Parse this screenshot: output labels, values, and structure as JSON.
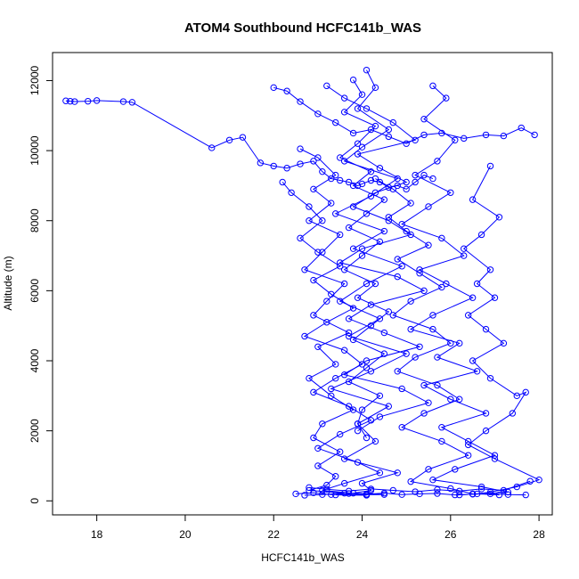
{
  "chart_data": {
    "type": "line",
    "title": "ATOM4 Southbound HCFC141b_WAS",
    "xlabel": "HCFC141b_WAS",
    "ylabel": "Altitude (m)",
    "xlim": [
      17,
      28.3
    ],
    "ylim": [
      -400,
      12800
    ],
    "xticks": [
      18,
      20,
      22,
      24,
      26,
      28
    ],
    "yticks": [
      0,
      2000,
      4000,
      6000,
      8000,
      10000,
      12000
    ],
    "grid": false,
    "legend": "none",
    "marker": "open-circle",
    "color": "#0000ff",
    "series": [
      {
        "x": [
          17.3,
          17.4,
          17.5,
          17.8,
          18.0,
          18.6,
          18.8,
          20.6,
          21.0,
          21.3,
          21.7,
          22.0,
          22.3,
          22.6,
          22.9,
          23.1,
          23.3,
          23.5,
          23.7,
          23.9,
          24.0,
          24.2,
          24.4,
          24.6,
          24.8,
          25.0,
          25.2,
          25.4,
          25.6
        ],
        "y": [
          11420,
          11410,
          11400,
          11410,
          11430,
          11400,
          11380,
          10080,
          10300,
          10380,
          9650,
          9560,
          9500,
          9620,
          9700,
          9400,
          9200,
          9150,
          9100,
          9000,
          9050,
          9150,
          9100,
          8950,
          9000,
          8900,
          9100,
          9300,
          9200
        ]
      },
      {
        "x": [
          24.1,
          24.3,
          23.9,
          24.6,
          24.0,
          23.6,
          24.8,
          24.2,
          23.4,
          24.5,
          23.8,
          24.9,
          24.1,
          23.5,
          24.4,
          23.7,
          25.0,
          24.2,
          23.3,
          24.6,
          23.9,
          24.3,
          23.6,
          24.8,
          24.0,
          24.2,
          23.8,
          24.5,
          23.4,
          24.1
        ],
        "y": [
          12300,
          11800,
          11200,
          10600,
          10100,
          9700,
          9200,
          8700,
          8200,
          7700,
          7200,
          6700,
          6200,
          5700,
          5200,
          4700,
          4200,
          3700,
          3200,
          2700,
          2200,
          1700,
          1200,
          800,
          500,
          300,
          220,
          180,
          170,
          160
        ]
      },
      {
        "x": [
          22.6,
          23.0,
          23.4,
          22.9,
          23.3,
          22.8,
          23.5,
          23.1,
          22.7,
          23.6,
          23.2,
          22.9,
          23.7,
          23.0,
          23.4,
          22.8,
          23.3,
          23.8,
          23.1,
          22.9,
          23.5,
          23.0,
          23.4,
          23.2,
          22.8,
          23.6,
          23.1,
          22.7
        ],
        "y": [
          10050,
          9800,
          9300,
          8900,
          8500,
          8000,
          7600,
          7100,
          6600,
          6200,
          5700,
          5300,
          4800,
          4400,
          3900,
          3500,
          3000,
          2600,
          2200,
          1800,
          1400,
          1000,
          700,
          450,
          300,
          220,
          180,
          160
        ]
      },
      {
        "x": [
          25.6,
          25.9,
          25.4,
          26.1,
          25.7,
          25.2,
          26.0,
          25.5,
          24.9,
          25.8,
          26.3,
          25.3,
          25.9,
          26.5,
          25.6,
          25.1,
          26.2,
          25.7,
          26.6,
          25.4,
          26.0,
          26.8,
          25.8,
          26.4,
          27.0,
          26.1,
          25.6,
          26.7,
          27.3,
          26.2
        ],
        "y": [
          11850,
          11500,
          10900,
          10300,
          9700,
          9300,
          8800,
          8400,
          7900,
          7500,
          7000,
          6600,
          6200,
          5800,
          5300,
          4900,
          4500,
          4100,
          3700,
          3300,
          2900,
          2500,
          2100,
          1700,
          1300,
          900,
          600,
          400,
          250,
          170
        ]
      },
      {
        "x": [
          26.9,
          26.5,
          27.1,
          26.7,
          26.3,
          26.9,
          26.6,
          27.0,
          26.4,
          26.8,
          27.2,
          26.5,
          26.9,
          27.5,
          27.7,
          27.4,
          26.8,
          26.4,
          27.0,
          28.0,
          27.5,
          26.9,
          26.6,
          27.1
        ],
        "y": [
          9560,
          8600,
          8100,
          7600,
          7200,
          6600,
          6200,
          5800,
          5300,
          4900,
          4500,
          4000,
          3500,
          3000,
          3100,
          2500,
          2000,
          1600,
          1200,
          600,
          400,
          250,
          200,
          170
        ]
      },
      {
        "x": [
          22.5,
          22.9,
          23.3,
          23.7,
          24.1,
          24.5,
          24.9,
          25.3,
          25.7,
          26.1,
          26.5,
          26.9,
          27.3,
          27.7
        ],
        "y": [
          200,
          230,
          180,
          210,
          190,
          220,
          180,
          200,
          210,
          170,
          190,
          200,
          180,
          170
        ]
      },
      {
        "x": [
          22.0,
          22.3,
          22.6,
          23.0,
          23.4,
          23.8,
          24.2,
          24.6,
          25.0,
          25.4,
          25.8,
          26.3,
          26.8,
          27.2,
          27.6,
          27.9
        ],
        "y": [
          11800,
          11700,
          11400,
          11050,
          10800,
          10500,
          10600,
          10400,
          10200,
          10450,
          10500,
          10350,
          10450,
          10420,
          10650,
          10450
        ]
      },
      {
        "x": [
          23.2,
          23.6,
          24.1,
          24.7,
          25.2,
          23.9,
          24.4,
          25.0,
          24.3,
          23.8,
          24.6,
          25.1,
          24.0,
          23.5,
          24.8,
          25.4,
          24.2,
          23.7,
          24.5,
          25.3,
          24.1,
          23.6,
          24.9,
          25.5,
          24.4,
          23.9
        ],
        "y": [
          11850,
          11500,
          11200,
          10800,
          10300,
          9900,
          9500,
          9100,
          8800,
          8400,
          8000,
          7600,
          7200,
          6800,
          6400,
          6000,
          5600,
          5200,
          4800,
          4400,
          4000,
          3600,
          3200,
          2800,
          2400,
          2000
        ]
      },
      {
        "x": [
          22.2,
          22.4,
          22.8,
          23.1,
          22.6,
          23.0,
          23.5,
          22.9,
          23.3,
          23.8,
          23.2,
          22.7,
          23.6,
          24.0,
          23.4,
          22.9,
          23.7,
          24.2,
          23.5,
          23.0,
          23.9,
          24.4,
          23.6,
          23.1,
          24.1
        ],
        "y": [
          9100,
          8800,
          8400,
          8000,
          7500,
          7100,
          6700,
          6300,
          5900,
          5500,
          5100,
          4700,
          4300,
          3900,
          3500,
          3100,
          2700,
          2300,
          1900,
          1500,
          1100,
          800,
          500,
          300,
          180
        ]
      },
      {
        "x": [
          24.3,
          24.7,
          25.1,
          24.6,
          25.0,
          25.5,
          24.8,
          25.3,
          25.8,
          25.1,
          24.7,
          25.6,
          26.0,
          25.2,
          24.8,
          25.7,
          26.2,
          25.4,
          24.9,
          25.8,
          26.4,
          25.5,
          25.1,
          26.0,
          26.5
        ],
        "y": [
          9200,
          8900,
          8500,
          8100,
          7700,
          7300,
          6900,
          6500,
          6100,
          5700,
          5300,
          4900,
          4500,
          4100,
          3700,
          3300,
          2900,
          2500,
          2100,
          1700,
          1300,
          900,
          550,
          350,
          200
        ]
      },
      {
        "x": [
          22.8,
          23.2,
          23.7,
          24.2,
          24.7,
          25.2,
          25.7,
          26.2,
          26.7,
          27.2,
          27.8
        ],
        "y": [
          380,
          330,
          280,
          340,
          300,
          260,
          320,
          280,
          340,
          300,
          560
        ]
      },
      {
        "x": [
          23.8,
          24.0,
          23.6,
          24.3,
          23.9,
          23.5,
          24.2,
          23.8,
          24.5,
          24.1,
          23.7,
          24.4,
          24.0,
          23.6,
          24.3,
          23.9,
          24.6,
          24.2,
          23.8,
          24.5,
          24.1,
          23.7,
          24.4,
          24.0,
          23.9,
          24.1
        ],
        "y": [
          12020,
          11600,
          11100,
          10700,
          10200,
          9800,
          9400,
          9000,
          8600,
          8200,
          7800,
          7400,
          7000,
          6600,
          6200,
          5800,
          5400,
          5000,
          4600,
          4200,
          3800,
          3400,
          3000,
          2600,
          2200,
          1800
        ]
      }
    ]
  }
}
